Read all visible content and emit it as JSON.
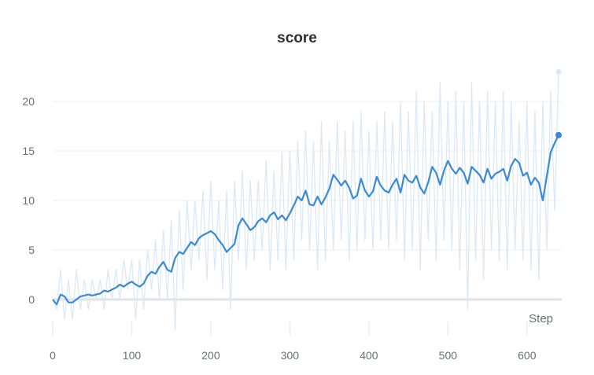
{
  "chart_data": {
    "type": "line",
    "title": "score",
    "xlabel": "Step",
    "ylabel": "",
    "xlim": [
      0,
      640
    ],
    "ylim": [
      -3.5,
      23.5
    ],
    "x_ticks": [
      0,
      100,
      200,
      300,
      400,
      500,
      600
    ],
    "y_ticks": [
      0,
      5,
      10,
      15,
      20
    ],
    "grid": true,
    "colors": {
      "smoothed": "#3a8ad6",
      "raw": "#dbe9f7",
      "grid": "#eef0f2",
      "zero_band": "#e0e2e6",
      "text": "#6b6e76"
    },
    "series": [
      {
        "role": "smoothed",
        "x": [
          0,
          5,
          10,
          15,
          20,
          25,
          30,
          35,
          40,
          45,
          50,
          55,
          60,
          65,
          70,
          75,
          80,
          85,
          90,
          95,
          100,
          105,
          110,
          115,
          120,
          125,
          130,
          135,
          140,
          145,
          150,
          155,
          160,
          165,
          170,
          175,
          180,
          185,
          190,
          195,
          200,
          205,
          210,
          215,
          220,
          225,
          230,
          235,
          240,
          245,
          250,
          255,
          260,
          265,
          270,
          275,
          280,
          285,
          290,
          295,
          300,
          305,
          310,
          315,
          320,
          325,
          330,
          335,
          340,
          345,
          350,
          355,
          360,
          365,
          370,
          375,
          380,
          385,
          390,
          395,
          400,
          405,
          410,
          415,
          420,
          425,
          430,
          435,
          440,
          445,
          450,
          455,
          460,
          465,
          470,
          475,
          480,
          485,
          490,
          495,
          500,
          505,
          510,
          515,
          520,
          525,
          530,
          535,
          540,
          545,
          550,
          555,
          560,
          565,
          570,
          575,
          580,
          585,
          590,
          595,
          600,
          605,
          610,
          615,
          620,
          625,
          630,
          635,
          640
        ],
        "y": [
          0.0,
          -0.5,
          0.5,
          0.3,
          -0.3,
          -0.3,
          0.0,
          0.3,
          0.4,
          0.5,
          0.4,
          0.5,
          0.6,
          0.9,
          0.8,
          1.0,
          1.2,
          1.5,
          1.3,
          1.6,
          1.8,
          1.5,
          1.3,
          1.6,
          2.4,
          2.8,
          2.6,
          3.3,
          3.8,
          3.0,
          2.8,
          4.2,
          4.8,
          4.6,
          5.2,
          5.8,
          5.5,
          6.2,
          6.5,
          6.7,
          6.9,
          6.6,
          6.0,
          5.5,
          4.8,
          5.2,
          5.6,
          7.5,
          8.2,
          7.6,
          7.0,
          7.3,
          7.9,
          8.2,
          7.8,
          8.5,
          8.8,
          8.1,
          8.5,
          8.0,
          8.7,
          9.5,
          10.4,
          10.0,
          11.0,
          9.6,
          9.5,
          10.4,
          9.6,
          10.3,
          11.2,
          12.6,
          12.1,
          11.5,
          12.0,
          11.3,
          10.2,
          10.5,
          12.2,
          11.0,
          10.4,
          10.9,
          12.4,
          11.5,
          11.0,
          10.8,
          11.6,
          12.2,
          10.8,
          12.6,
          12.0,
          11.8,
          12.5,
          11.3,
          10.7,
          11.8,
          13.4,
          12.8,
          11.6,
          13.0,
          14.0,
          13.2,
          12.7,
          13.3,
          12.8,
          11.7,
          13.4,
          13.0,
          12.6,
          11.8,
          13.2,
          12.2,
          12.7,
          12.9,
          13.2,
          12.0,
          13.5,
          14.2,
          13.8,
          12.5,
          12.8,
          11.6,
          12.3,
          11.8,
          10.0,
          12.4,
          14.9,
          15.8,
          16.6
        ]
      },
      {
        "role": "raw",
        "x": [
          0,
          5,
          10,
          15,
          20,
          25,
          30,
          35,
          40,
          45,
          50,
          55,
          60,
          65,
          70,
          75,
          80,
          85,
          90,
          95,
          100,
          105,
          110,
          115,
          120,
          125,
          130,
          135,
          140,
          145,
          150,
          155,
          160,
          165,
          170,
          175,
          180,
          185,
          190,
          195,
          200,
          205,
          210,
          215,
          220,
          225,
          230,
          235,
          240,
          245,
          250,
          255,
          260,
          265,
          270,
          275,
          280,
          285,
          290,
          295,
          300,
          305,
          310,
          315,
          320,
          325,
          330,
          335,
          340,
          345,
          350,
          355,
          360,
          365,
          370,
          375,
          380,
          385,
          390,
          395,
          400,
          405,
          410,
          415,
          420,
          425,
          430,
          435,
          440,
          445,
          450,
          455,
          460,
          465,
          470,
          475,
          480,
          485,
          490,
          495,
          500,
          505,
          510,
          515,
          520,
          525,
          530,
          535,
          540,
          545,
          550,
          555,
          560,
          565,
          570,
          575,
          580,
          585,
          590,
          595,
          600,
          605,
          610,
          615,
          620,
          625,
          630,
          635,
          640
        ],
        "y": [
          0,
          -1,
          3,
          -2,
          2,
          -2,
          3,
          -1,
          2,
          -1,
          2,
          0,
          2,
          -1,
          3,
          0,
          3,
          0,
          4,
          1,
          4,
          -2,
          4,
          -1,
          5,
          1,
          6,
          0,
          7,
          0,
          8,
          -3,
          9,
          1,
          10,
          3,
          10,
          4,
          11,
          2,
          12,
          3,
          10,
          1,
          11,
          -1,
          12,
          4,
          13,
          3,
          12,
          4,
          12,
          5,
          14,
          3,
          13,
          4,
          15,
          3,
          15,
          4,
          16,
          6,
          17,
          5,
          16,
          3,
          18,
          4,
          16,
          5,
          18,
          6,
          17,
          4,
          18,
          5,
          19,
          6,
          17,
          5,
          18,
          6,
          19,
          5,
          18,
          6,
          20,
          4,
          19,
          5,
          21,
          3,
          20,
          6,
          19,
          4,
          22,
          6,
          20,
          5,
          21,
          3,
          20,
          -1,
          22,
          4,
          20,
          2,
          21,
          5,
          20,
          4,
          21,
          3,
          20,
          5,
          18,
          4,
          20,
          3,
          19,
          2,
          20,
          5,
          21,
          9,
          23
        ]
      }
    ]
  }
}
